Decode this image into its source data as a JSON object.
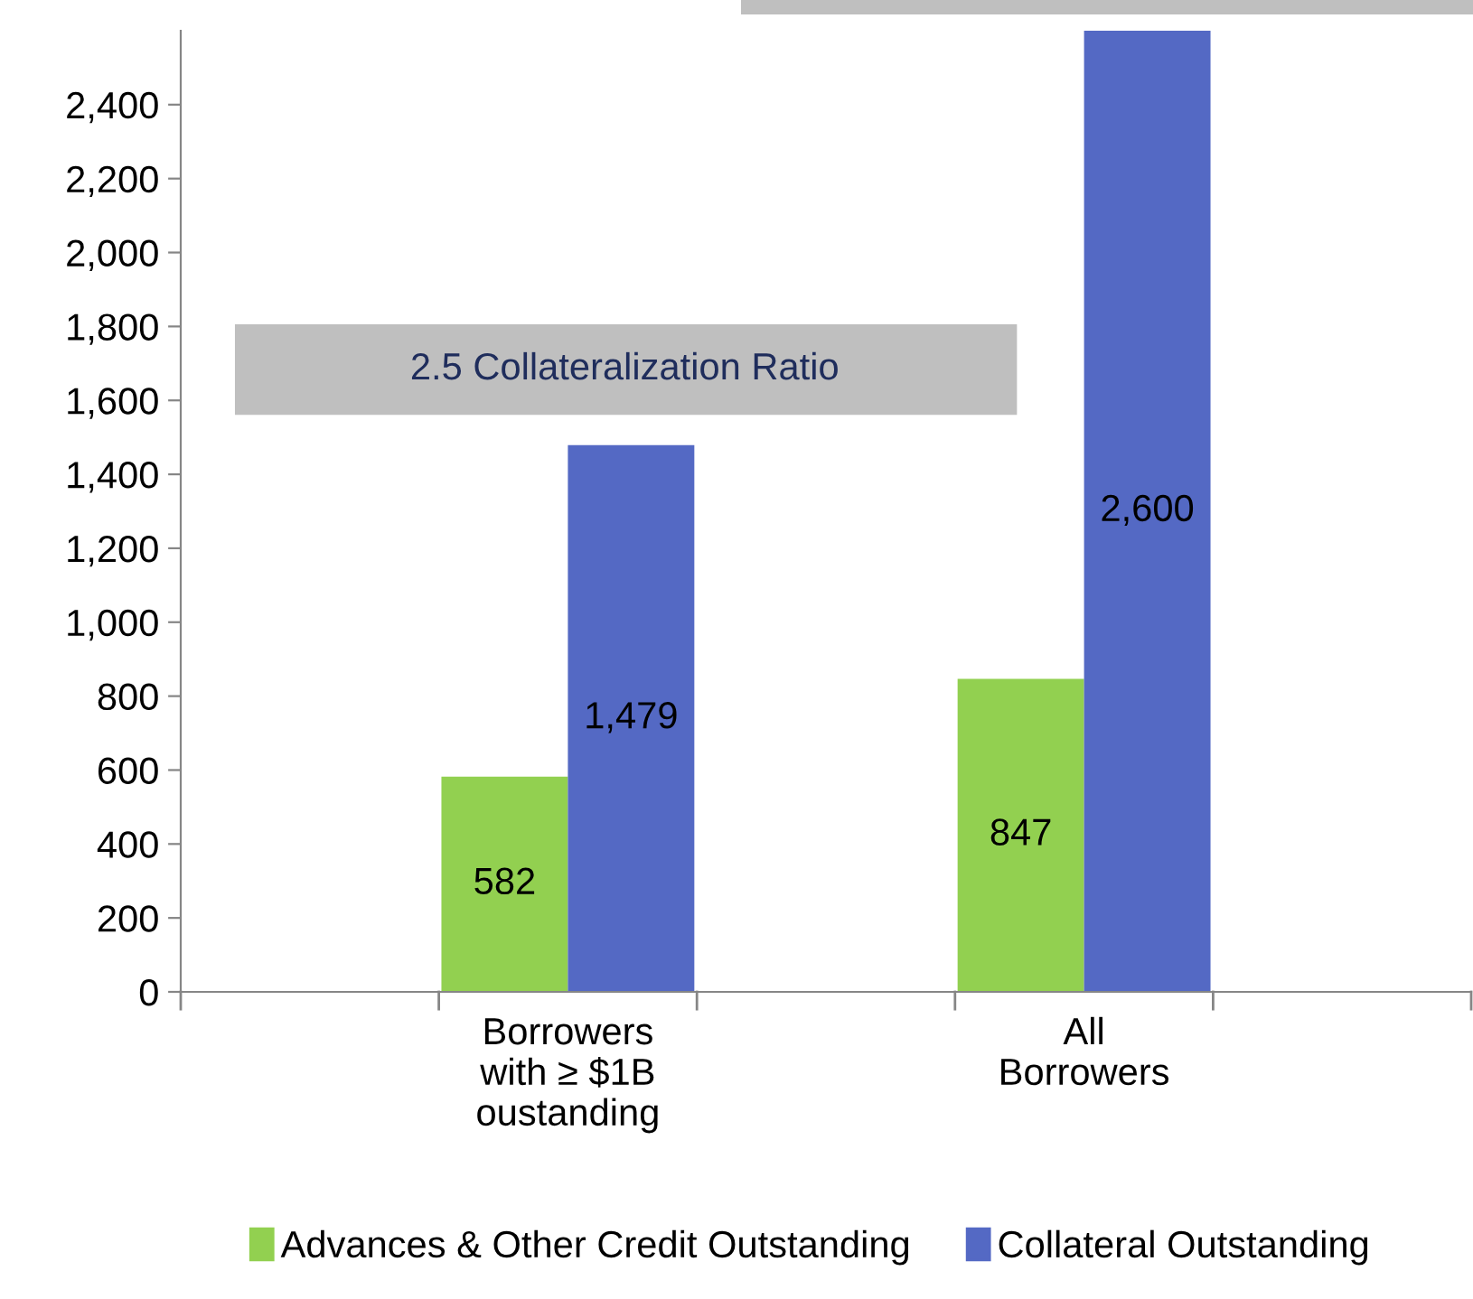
{
  "chart_data": {
    "type": "bar",
    "categories": [
      null,
      "Borrowers\nwith ≥ $1B\noustanding",
      null,
      "All\nBorrowers",
      null
    ],
    "series": [
      {
        "name": "Advances & Other Credit Outstanding",
        "color": "#92d050",
        "values": [
          null,
          582,
          null,
          847,
          null
        ],
        "value_labels": [
          null,
          "582",
          null,
          "847",
          null
        ]
      },
      {
        "name": "Collateral Outstanding",
        "color": "#5469c4",
        "values": [
          null,
          1479,
          null,
          2600,
          null
        ],
        "value_labels": [
          null,
          "1,479",
          null,
          "2,600",
          null
        ]
      }
    ],
    "ylim": [
      0,
      2600
    ],
    "yticks": [
      {
        "value": 0,
        "label": "0"
      },
      {
        "value": 200,
        "label": "200"
      },
      {
        "value": 400,
        "label": "400"
      },
      {
        "value": 600,
        "label": "600"
      },
      {
        "value": 800,
        "label": "800"
      },
      {
        "value": 1000,
        "label": "1,000"
      },
      {
        "value": 1200,
        "label": "1,200"
      },
      {
        "value": 1400,
        "label": "1,400"
      },
      {
        "value": 1600,
        "label": "1,600"
      },
      {
        "value": 1800,
        "label": "1,800"
      },
      {
        "value": 2000,
        "label": "2,000"
      },
      {
        "value": 2200,
        "label": "2,200"
      },
      {
        "value": 2400,
        "label": "2,400"
      }
    ],
    "annotations": [
      "2.5 Collateralization Ratio"
    ],
    "grid": false,
    "legend": "bottom"
  }
}
